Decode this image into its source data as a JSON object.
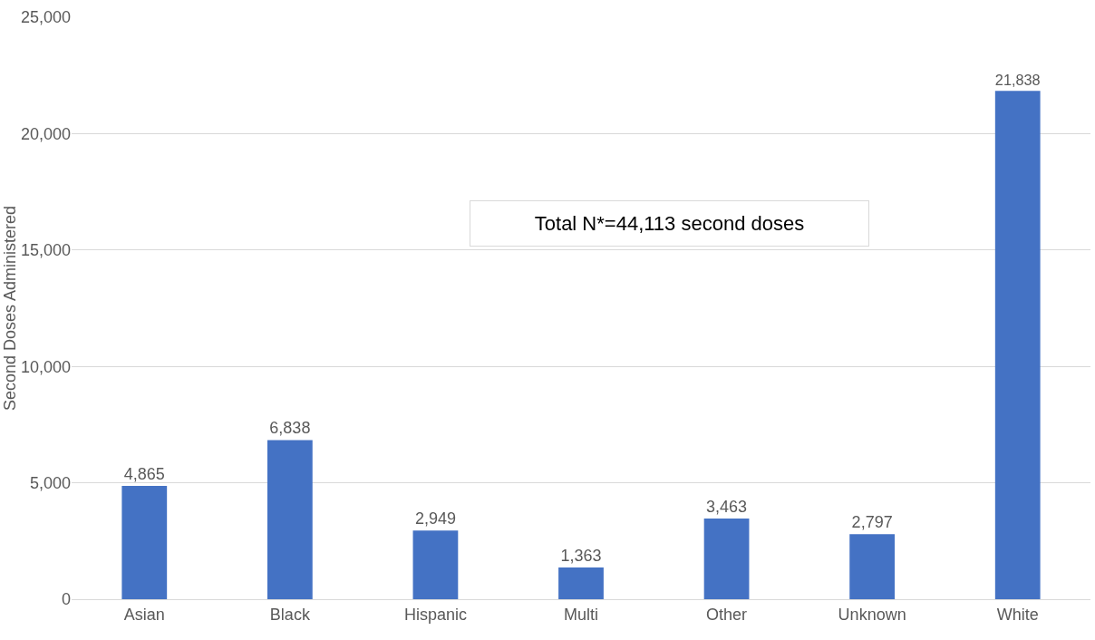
{
  "chart_data": {
    "type": "bar",
    "ylabel": "Second Doses Administered",
    "categories": [
      "Asian",
      "Black",
      "Hispanic",
      "Multi",
      "Other",
      "Unknown",
      "White"
    ],
    "values": [
      4865,
      6838,
      2949,
      1363,
      3463,
      2797,
      21838
    ],
    "color": "#4472c4",
    "value_labels": [
      "4,865",
      "6,838",
      "2,949",
      "1,363",
      "3,463",
      "2,797",
      "21,838"
    ],
    "ylim": [
      0,
      25000
    ],
    "yticks": [
      {
        "value": 0,
        "label": "0"
      },
      {
        "value": 5000,
        "label": "5,000"
      },
      {
        "value": 10000,
        "label": "10,000"
      },
      {
        "value": 15000,
        "label": "15,000"
      },
      {
        "value": 20000,
        "label": "20,000"
      },
      {
        "value": 25000,
        "label": "25,000"
      }
    ],
    "grid": "y",
    "legend": false,
    "annotations": [
      "Total N*=44,113 second doses"
    ]
  }
}
